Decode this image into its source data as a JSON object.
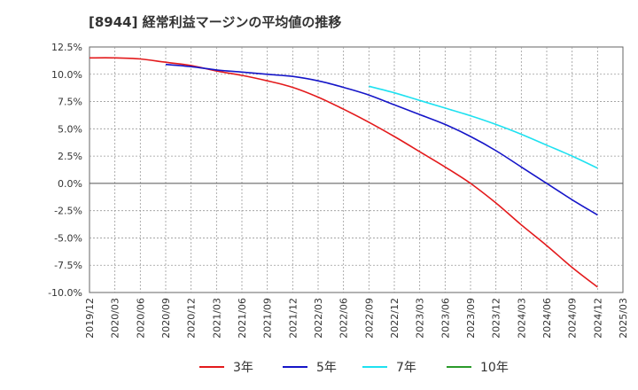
{
  "chart_data": {
    "type": "line",
    "title": "[8944]  経常利益マージンの平均値の推移",
    "xlabel": "",
    "ylabel": "",
    "ylim": [
      -10,
      12.5
    ],
    "y_ticks": [
      12.5,
      10.0,
      7.5,
      5.0,
      2.5,
      0.0,
      -2.5,
      -5.0,
      -7.5,
      -10.0
    ],
    "y_tick_labels": [
      "12.5%",
      "10.0%",
      "7.5%",
      "5.0%",
      "2.5%",
      "0.0%",
      "-2.5%",
      "-5.0%",
      "-7.5%",
      "-10.0%"
    ],
    "x_tick_labels": [
      "2019/12",
      "2020/03",
      "2020/06",
      "2020/09",
      "2020/12",
      "2021/03",
      "2021/06",
      "2021/09",
      "2021/12",
      "2022/03",
      "2022/06",
      "2022/09",
      "2022/12",
      "2023/03",
      "2023/06",
      "2023/09",
      "2023/12",
      "2024/03",
      "2024/06",
      "2024/09",
      "2024/12",
      "2025/03"
    ],
    "grid": true,
    "legend_position": "bottom",
    "series": [
      {
        "name": "3年",
        "color": "#e31a1c",
        "x": [
          "2019/12",
          "2020/03",
          "2020/06",
          "2020/09",
          "2020/12",
          "2021/03",
          "2021/06",
          "2021/09",
          "2021/12",
          "2022/03",
          "2022/06",
          "2022/09",
          "2022/12",
          "2023/03",
          "2023/06",
          "2023/09",
          "2023/12",
          "2024/03",
          "2024/06",
          "2024/09",
          "2024/12"
        ],
        "values": [
          11.5,
          11.5,
          11.4,
          11.1,
          10.8,
          10.3,
          9.9,
          9.4,
          8.8,
          7.9,
          6.8,
          5.6,
          4.3,
          2.9,
          1.5,
          0.0,
          -1.8,
          -3.8,
          -5.7,
          -7.7,
          -9.5
        ]
      },
      {
        "name": "5年",
        "color": "#1515c8",
        "x": [
          "2020/09",
          "2020/12",
          "2021/03",
          "2021/06",
          "2021/09",
          "2021/12",
          "2022/03",
          "2022/06",
          "2022/09",
          "2022/12",
          "2023/03",
          "2023/06",
          "2023/09",
          "2023/12",
          "2024/03",
          "2024/06",
          "2024/09",
          "2024/12"
        ],
        "values": [
          10.9,
          10.7,
          10.4,
          10.2,
          10.0,
          9.8,
          9.4,
          8.8,
          8.1,
          7.2,
          6.3,
          5.4,
          4.3,
          3.0,
          1.5,
          0.0,
          -1.5,
          -2.9
        ]
      },
      {
        "name": "7年",
        "color": "#1ee1f0",
        "x": [
          "2022/09",
          "2022/12",
          "2023/03",
          "2023/06",
          "2023/09",
          "2023/12",
          "2024/03",
          "2024/06",
          "2024/09",
          "2024/12"
        ],
        "values": [
          8.9,
          8.3,
          7.6,
          6.9,
          6.2,
          5.4,
          4.5,
          3.5,
          2.5,
          1.4
        ]
      },
      {
        "name": "10年",
        "color": "#2a9a2a",
        "x": [],
        "values": []
      }
    ]
  }
}
